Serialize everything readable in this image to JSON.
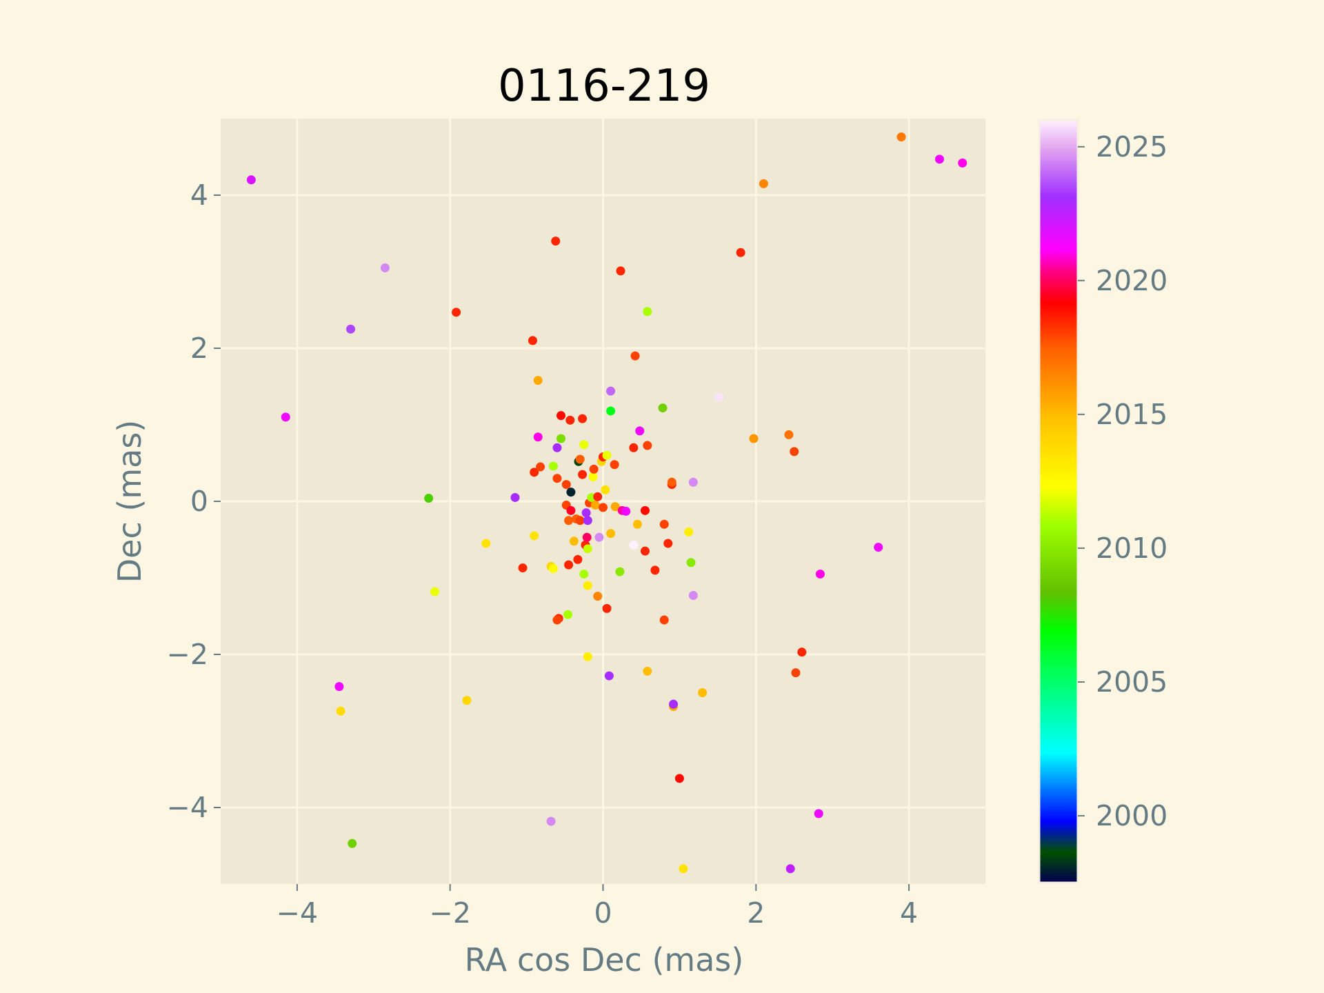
{
  "chart_data": {
    "type": "scatter",
    "title": "0116-219",
    "xlabel": "RA cos Dec (mas)",
    "ylabel": "Dec (mas)",
    "xlim": [
      -5,
      5
    ],
    "ylim": [
      -5,
      5
    ],
    "xticks": [
      -4,
      -2,
      0,
      2,
      4
    ],
    "yticks": [
      -4,
      -2,
      0,
      2,
      4
    ],
    "grid": true,
    "colorbar": {
      "label": "",
      "range": [
        1997.5,
        2026
      ],
      "ticks": [
        2000,
        2005,
        2010,
        2015,
        2020,
        2025
      ],
      "colormap": "gist_ncar-like"
    },
    "colors": {
      "figure_bg": "#fdf6e3",
      "axes_bg": "#efe8d5",
      "grid": "#fdf6e3",
      "text": "#657b83"
    },
    "points": [
      {
        "x": -4.6,
        "y": 4.2,
        "year": 2022.0
      },
      {
        "x": -4.15,
        "y": 1.1,
        "year": 2021.5
      },
      {
        "x": -3.45,
        "y": -2.42,
        "year": 2021.5
      },
      {
        "x": -3.43,
        "y": -2.74,
        "year": 2013.8
      },
      {
        "x": -3.3,
        "y": 2.25,
        "year": 2023.5
      },
      {
        "x": -3.28,
        "y": -4.47,
        "year": 2009.0
      },
      {
        "x": -2.85,
        "y": 3.05,
        "year": 2024.5
      },
      {
        "x": -2.28,
        "y": 0.04,
        "year": 2008.0
      },
      {
        "x": -2.2,
        "y": -1.18,
        "year": 2012.0
      },
      {
        "x": -1.92,
        "y": 2.47,
        "year": 2018.5
      },
      {
        "x": -1.78,
        "y": -2.6,
        "year": 2014.0
      },
      {
        "x": -1.53,
        "y": -0.55,
        "year": 2013.5
      },
      {
        "x": -1.15,
        "y": 0.05,
        "year": 2023.0
      },
      {
        "x": -1.05,
        "y": -0.87,
        "year": 2018.5
      },
      {
        "x": -0.92,
        "y": 2.1,
        "year": 2018.5
      },
      {
        "x": -0.9,
        "y": -0.45,
        "year": 2013.5
      },
      {
        "x": -0.85,
        "y": 1.58,
        "year": 2015.5
      },
      {
        "x": -0.85,
        "y": 0.84,
        "year": 2021.0
      },
      {
        "x": -0.9,
        "y": 0.38,
        "year": 2018.5
      },
      {
        "x": -0.82,
        "y": 0.45,
        "year": 2018.0
      },
      {
        "x": -0.68,
        "y": -0.85,
        "year": 2014.0
      },
      {
        "x": -0.65,
        "y": -0.88,
        "year": 2012.5
      },
      {
        "x": -0.68,
        "y": -4.18,
        "year": 2024.5
      },
      {
        "x": -0.65,
        "y": 0.46,
        "year": 2011.0
      },
      {
        "x": -0.62,
        "y": 3.4,
        "year": 2018.5
      },
      {
        "x": -0.6,
        "y": 0.7,
        "year": 2023.0
      },
      {
        "x": -0.6,
        "y": 0.3,
        "year": 2018.0
      },
      {
        "x": -0.58,
        "y": -1.53,
        "year": 2018.5
      },
      {
        "x": -0.6,
        "y": -1.55,
        "year": 2018.0
      },
      {
        "x": -0.55,
        "y": 1.12,
        "year": 2019.0
      },
      {
        "x": -0.55,
        "y": 0.82,
        "year": 2009.5
      },
      {
        "x": -0.48,
        "y": 0.22,
        "year": 2018.0
      },
      {
        "x": -0.48,
        "y": -0.05,
        "year": 2018.0
      },
      {
        "x": -0.46,
        "y": -1.48,
        "year": 2011.0
      },
      {
        "x": -0.45,
        "y": -0.83,
        "year": 2018.5
      },
      {
        "x": -0.45,
        "y": -0.25,
        "year": 2017.5
      },
      {
        "x": -0.43,
        "y": 1.06,
        "year": 2018.5
      },
      {
        "x": -0.42,
        "y": 0.12,
        "year": 1998.0
      },
      {
        "x": -0.42,
        "y": -0.12,
        "year": 2019.5
      },
      {
        "x": -0.38,
        "y": -0.52,
        "year": 2015.0
      },
      {
        "x": -0.35,
        "y": -0.23,
        "year": 2017.5
      },
      {
        "x": -0.33,
        "y": -0.76,
        "year": 2018.5
      },
      {
        "x": -0.32,
        "y": 0.52,
        "year": 1998.5
      },
      {
        "x": -0.3,
        "y": 0.55,
        "year": 2017.5
      },
      {
        "x": -0.3,
        "y": -0.25,
        "year": 2018.0
      },
      {
        "x": -0.27,
        "y": 1.08,
        "year": 2018.5
      },
      {
        "x": -0.27,
        "y": 0.35,
        "year": 2018.5
      },
      {
        "x": -0.25,
        "y": 0.74,
        "year": 2012.0
      },
      {
        "x": -0.25,
        "y": -0.95,
        "year": 2011.0
      },
      {
        "x": -0.23,
        "y": -0.57,
        "year": 2018.5
      },
      {
        "x": -0.22,
        "y": -0.15,
        "year": 2023.0
      },
      {
        "x": -0.21,
        "y": -0.47,
        "year": 2020.0
      },
      {
        "x": -0.2,
        "y": -1.1,
        "year": 2013.0
      },
      {
        "x": -0.2,
        "y": -2.03,
        "year": 2013.0
      },
      {
        "x": -0.2,
        "y": -0.25,
        "year": 2023.0
      },
      {
        "x": -0.2,
        "y": -0.62,
        "year": 2011.5
      },
      {
        "x": -0.18,
        "y": -0.02,
        "year": 2018.0
      },
      {
        "x": -0.15,
        "y": 0.05,
        "year": 2011.0
      },
      {
        "x": -0.13,
        "y": 0.32,
        "year": 2012.5
      },
      {
        "x": -0.12,
        "y": 0.42,
        "year": 2018.0
      },
      {
        "x": -0.1,
        "y": -0.05,
        "year": 2015.5
      },
      {
        "x": -0.07,
        "y": 0.06,
        "year": 2018.5
      },
      {
        "x": -0.07,
        "y": -1.24,
        "year": 2016.5
      },
      {
        "x": -0.05,
        "y": -0.47,
        "year": 2024.5
      },
      {
        "x": -0.02,
        "y": 0.52,
        "year": 2014.0
      },
      {
        "x": 0.0,
        "y": 0.58,
        "year": 2018.5
      },
      {
        "x": 0.0,
        "y": -0.08,
        "year": 2018.0
      },
      {
        "x": 0.03,
        "y": 0.15,
        "year": 2013.5
      },
      {
        "x": 0.05,
        "y": 0.6,
        "year": 2012.0
      },
      {
        "x": 0.05,
        "y": -1.4,
        "year": 2018.5
      },
      {
        "x": 0.08,
        "y": -2.28,
        "year": 2023.0
      },
      {
        "x": 0.1,
        "y": 1.44,
        "year": 2024.0
      },
      {
        "x": 0.1,
        "y": 1.18,
        "year": 2006.5
      },
      {
        "x": 0.1,
        "y": -0.42,
        "year": 2015.0
      },
      {
        "x": 0.15,
        "y": 0.48,
        "year": 2018.0
      },
      {
        "x": 0.16,
        "y": -0.07,
        "year": 2015.5
      },
      {
        "x": 0.22,
        "y": -0.92,
        "year": 2010.0
      },
      {
        "x": 0.23,
        "y": 3.01,
        "year": 2018.5
      },
      {
        "x": 0.25,
        "y": -0.12,
        "year": 2020.5
      },
      {
        "x": 0.3,
        "y": -0.13,
        "year": 2021.5
      },
      {
        "x": 0.4,
        "y": 0.7,
        "year": 2018.5
      },
      {
        "x": 0.4,
        "y": -0.57,
        "year": 2026.0
      },
      {
        "x": 0.42,
        "y": 1.9,
        "year": 2018.0
      },
      {
        "x": 0.45,
        "y": -0.3,
        "year": 2015.0
      },
      {
        "x": 0.48,
        "y": 0.92,
        "year": 2021.5
      },
      {
        "x": 0.55,
        "y": -0.12,
        "year": 2019.0
      },
      {
        "x": 0.55,
        "y": -0.65,
        "year": 2018.5
      },
      {
        "x": 0.58,
        "y": 2.48,
        "year": 2011.0
      },
      {
        "x": 0.58,
        "y": 0.73,
        "year": 2018.0
      },
      {
        "x": 0.58,
        "y": -2.22,
        "year": 2015.0
      },
      {
        "x": 0.68,
        "y": -0.9,
        "year": 2018.5
      },
      {
        "x": 0.78,
        "y": 1.22,
        "year": 2009.0
      },
      {
        "x": 0.8,
        "y": -0.3,
        "year": 2018.0
      },
      {
        "x": 0.8,
        "y": -1.55,
        "year": 2018.0
      },
      {
        "x": 0.85,
        "y": -0.55,
        "year": 2018.5
      },
      {
        "x": 0.9,
        "y": 0.22,
        "year": 2018.5
      },
      {
        "x": 0.9,
        "y": 0.25,
        "year": 2017.5
      },
      {
        "x": 0.92,
        "y": -2.68,
        "year": 2015.5
      },
      {
        "x": 0.92,
        "y": -2.65,
        "year": 2023.0
      },
      {
        "x": 1.0,
        "y": -3.62,
        "year": 2019.0
      },
      {
        "x": 1.05,
        "y": -4.8,
        "year": 2013.5
      },
      {
        "x": 1.12,
        "y": -0.4,
        "year": 2013.0
      },
      {
        "x": 1.15,
        "y": -0.8,
        "year": 2010.0
      },
      {
        "x": 1.18,
        "y": 0.25,
        "year": 2024.5
      },
      {
        "x": 1.18,
        "y": -1.23,
        "year": 2024.5
      },
      {
        "x": 1.3,
        "y": -2.5,
        "year": 2015.0
      },
      {
        "x": 1.52,
        "y": 1.36,
        "year": 2025.8
      },
      {
        "x": 1.8,
        "y": 3.25,
        "year": 2018.5
      },
      {
        "x": 1.97,
        "y": 0.82,
        "year": 2016.0
      },
      {
        "x": 2.1,
        "y": 4.15,
        "year": 2016.5
      },
      {
        "x": 2.43,
        "y": 0.87,
        "year": 2017.0
      },
      {
        "x": 2.45,
        "y": -4.8,
        "year": 2022.5
      },
      {
        "x": 2.5,
        "y": 0.65,
        "year": 2018.0
      },
      {
        "x": 2.52,
        "y": -2.24,
        "year": 2018.0
      },
      {
        "x": 2.6,
        "y": -1.97,
        "year": 2018.5
      },
      {
        "x": 2.82,
        "y": -4.08,
        "year": 2021.5
      },
      {
        "x": 2.84,
        "y": -0.95,
        "year": 2021.0
      },
      {
        "x": 3.6,
        "y": -0.6,
        "year": 2021.5
      },
      {
        "x": 3.9,
        "y": 4.76,
        "year": 2016.8
      },
      {
        "x": 4.4,
        "y": 4.47,
        "year": 2021.5
      },
      {
        "x": 4.7,
        "y": 4.42,
        "year": 2021.0
      }
    ]
  }
}
